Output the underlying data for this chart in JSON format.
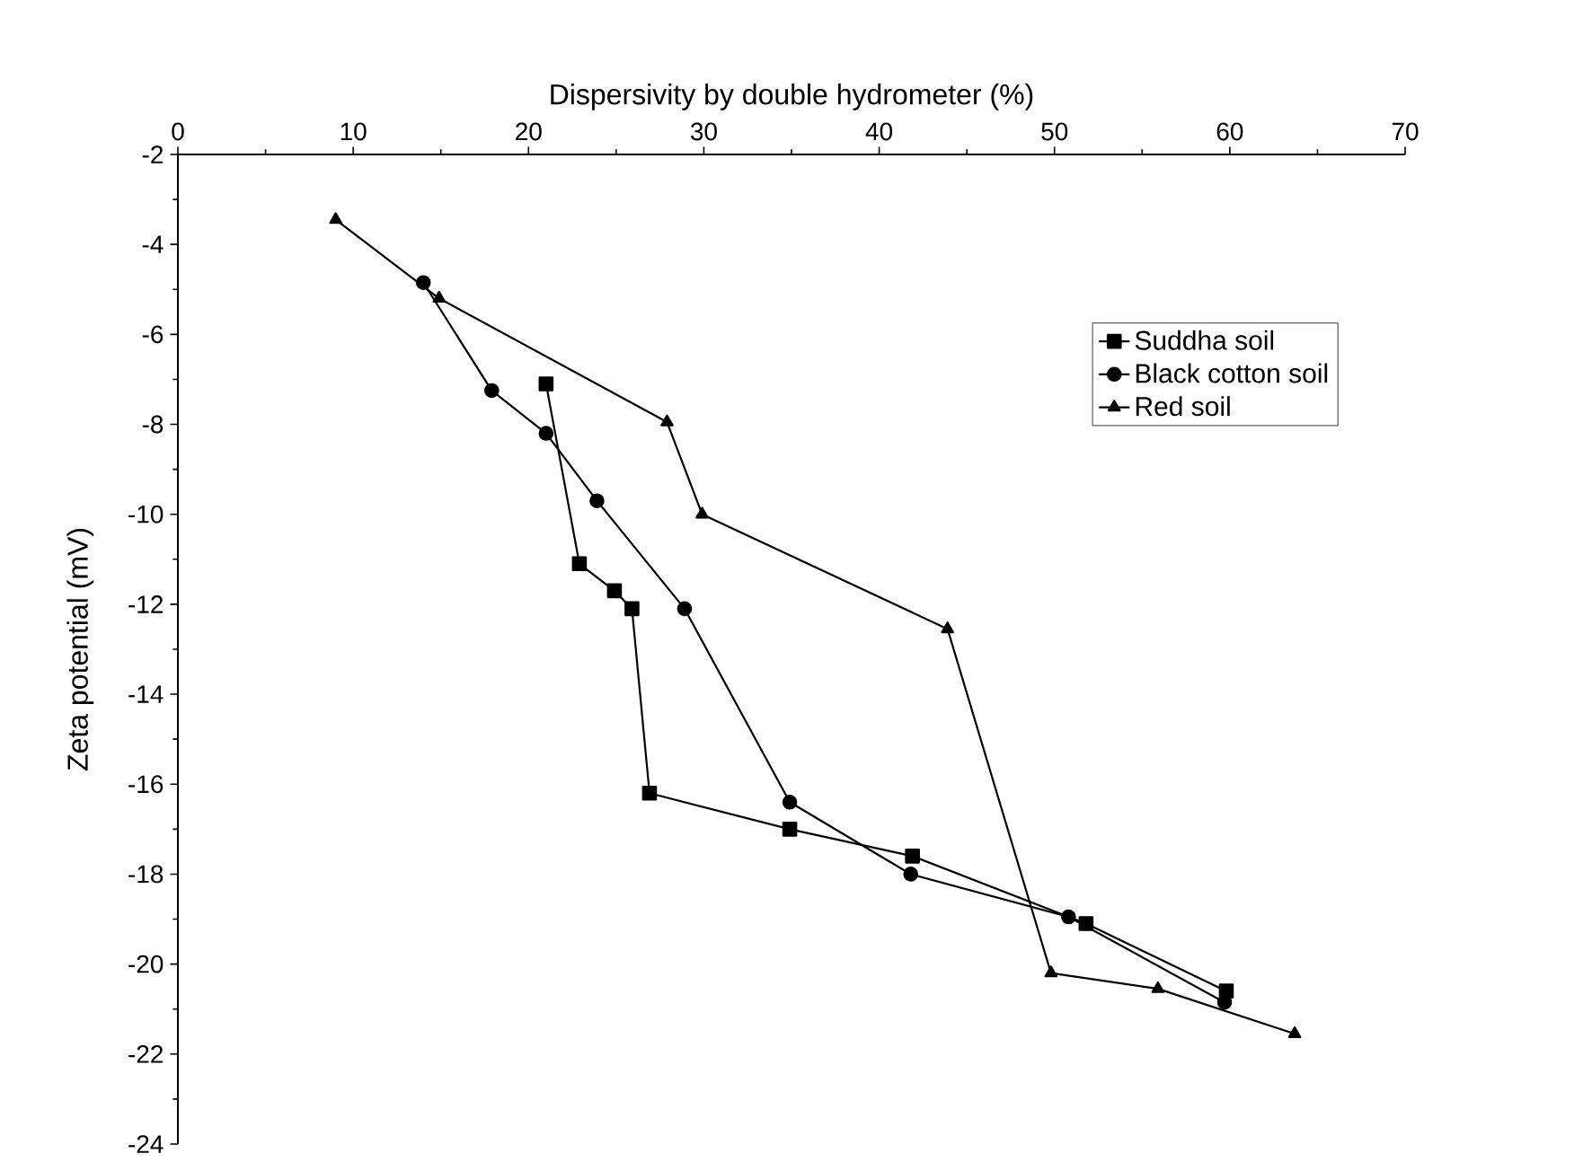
{
  "chart_data": {
    "type": "line",
    "xlabel": "Dispersivity by double hydrometer (%)",
    "ylabel": "Zeta potential (mV)",
    "xlim": [
      0,
      70
    ],
    "xticks": [
      0,
      10,
      20,
      30,
      40,
      50,
      60,
      70
    ],
    "ylim": [
      -24,
      -2
    ],
    "yticks": [
      -24,
      -22,
      -20,
      -18,
      -16,
      -14,
      -12,
      -10,
      -8,
      -6,
      -4,
      -2
    ],
    "grid": false,
    "legend": "right",
    "line_style": "solid",
    "series": [
      {
        "name": "Suddha soil",
        "color": "#000000",
        "marker": "square",
        "x": [
          21.0,
          22.9,
          24.9,
          25.9,
          26.9,
          34.9,
          41.9,
          51.8,
          59.8
        ],
        "values": [
          -7.1,
          -11.1,
          -11.7,
          -12.1,
          -16.2,
          -17.0,
          -17.6,
          -19.1,
          -20.6
        ]
      },
      {
        "name": "Black  cotton soil",
        "color": "#000000",
        "marker": "circle",
        "x": [
          14.0,
          17.9,
          21.0,
          23.9,
          28.9,
          34.9,
          41.8,
          50.8,
          59.7
        ],
        "values": [
          -4.85,
          -7.25,
          -8.2,
          -9.7,
          -12.1,
          -16.4,
          -18.0,
          -18.95,
          -20.85
        ]
      },
      {
        "name": "Red soil",
        "color": "#000000",
        "marker": "triangle",
        "x": [
          9.0,
          14.9,
          27.9,
          29.9,
          43.9,
          49.8,
          55.9,
          63.7
        ],
        "values": [
          -3.45,
          -5.2,
          -7.95,
          -10.0,
          -12.55,
          -20.2,
          -20.55,
          -21.55
        ]
      }
    ]
  }
}
